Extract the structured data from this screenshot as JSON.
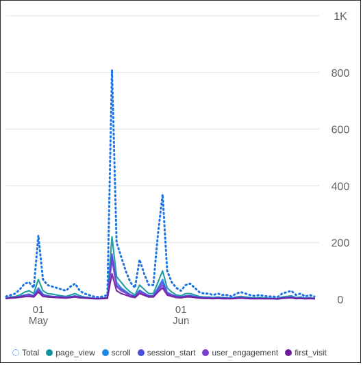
{
  "chart_data": {
    "type": "line",
    "x": [
      "2024-04-24",
      "2024-04-25",
      "2024-04-26",
      "2024-04-27",
      "2024-04-28",
      "2024-04-29",
      "2024-04-30",
      "2024-05-01",
      "2024-05-02",
      "2024-05-03",
      "2024-05-04",
      "2024-05-05",
      "2024-05-06",
      "2024-05-07",
      "2024-05-08",
      "2024-05-09",
      "2024-05-10",
      "2024-05-11",
      "2024-05-12",
      "2024-05-13",
      "2024-05-14",
      "2024-05-15",
      "2024-05-16",
      "2024-05-17",
      "2024-05-18",
      "2024-05-19",
      "2024-05-20",
      "2024-05-21",
      "2024-05-22",
      "2024-05-23",
      "2024-05-24",
      "2024-05-25",
      "2024-05-26",
      "2024-05-27",
      "2024-05-28",
      "2024-05-29",
      "2024-05-30",
      "2024-05-31",
      "2024-06-01",
      "2024-06-02",
      "2024-06-03",
      "2024-06-04",
      "2024-06-05",
      "2024-06-06",
      "2024-06-07",
      "2024-06-08",
      "2024-06-09",
      "2024-06-10",
      "2024-06-11",
      "2024-06-12",
      "2024-06-13",
      "2024-06-14",
      "2024-06-15",
      "2024-06-16",
      "2024-06-17",
      "2024-06-18",
      "2024-06-19",
      "2024-06-20",
      "2024-06-21",
      "2024-06-22",
      "2024-06-23",
      "2024-06-24",
      "2024-06-25",
      "2024-06-26",
      "2024-06-27",
      "2024-06-28",
      "2024-06-29",
      "2024-06-30"
    ],
    "x_ticks": [
      {
        "date": "2024-05-01",
        "label": "01",
        "sublabel": "May"
      },
      {
        "date": "2024-06-01",
        "label": "01",
        "sublabel": "Jun"
      }
    ],
    "y_ticks": [
      0,
      200,
      400,
      600,
      800,
      1000
    ],
    "y_tick_labels": [
      "0",
      "200",
      "400",
      "600",
      "800",
      "1K"
    ],
    "ylim": [
      0,
      1000
    ],
    "grid": true,
    "y_axis_side": "right",
    "legend_position": "bottom",
    "series": [
      {
        "name": "Total",
        "color": "#1a73e8",
        "style": "dotted",
        "marker": "hollow",
        "values": [
          10,
          15,
          20,
          35,
          55,
          60,
          40,
          225,
          70,
          50,
          45,
          40,
          35,
          30,
          45,
          55,
          30,
          20,
          15,
          10,
          8,
          10,
          15,
          810,
          200,
          150,
          100,
          60,
          40,
          140,
          90,
          50,
          50,
          230,
          370,
          100,
          60,
          40,
          30,
          50,
          55,
          40,
          25,
          20,
          20,
          15,
          20,
          15,
          15,
          10,
          20,
          25,
          20,
          15,
          12,
          15,
          12,
          10,
          10,
          8,
          20,
          25,
          30,
          15,
          20,
          10,
          15,
          10
        ]
      },
      {
        "name": "page_view",
        "color": "#12939a",
        "style": "solid",
        "marker": "filled",
        "values": [
          5,
          8,
          10,
          15,
          25,
          30,
          20,
          70,
          30,
          20,
          18,
          15,
          12,
          10,
          15,
          20,
          12,
          8,
          6,
          4,
          3,
          4,
          6,
          220,
          80,
          60,
          40,
          25,
          15,
          50,
          35,
          20,
          20,
          60,
          100,
          40,
          25,
          15,
          12,
          20,
          20,
          15,
          10,
          8,
          8,
          6,
          8,
          6,
          6,
          4,
          8,
          10,
          8,
          6,
          5,
          6,
          5,
          4,
          4,
          3,
          8,
          10,
          12,
          6,
          8,
          4,
          6,
          4
        ]
      },
      {
        "name": "scroll",
        "color": "#1e88e5",
        "style": "solid",
        "marker": "filled",
        "values": [
          3,
          5,
          6,
          10,
          15,
          18,
          12,
          40,
          18,
          12,
          10,
          9,
          8,
          6,
          9,
          12,
          7,
          5,
          4,
          3,
          2,
          3,
          4,
          150,
          60,
          40,
          28,
          16,
          10,
          32,
          22,
          12,
          12,
          40,
          70,
          25,
          16,
          10,
          8,
          12,
          13,
          10,
          6,
          5,
          5,
          4,
          5,
          4,
          4,
          3,
          5,
          6,
          5,
          4,
          3,
          4,
          3,
          3,
          3,
          2,
          5,
          6,
          7,
          4,
          5,
          3,
          4,
          3
        ]
      },
      {
        "name": "session_start",
        "color": "#4b4fde",
        "style": "solid",
        "marker": "filled",
        "values": [
          4,
          6,
          7,
          10,
          14,
          16,
          12,
          35,
          15,
          11,
          10,
          9,
          8,
          7,
          9,
          11,
          8,
          6,
          5,
          4,
          3,
          4,
          5,
          160,
          50,
          35,
          25,
          15,
          10,
          30,
          20,
          12,
          12,
          35,
          60,
          22,
          15,
          10,
          8,
          11,
          12,
          9,
          6,
          5,
          5,
          4,
          5,
          4,
          4,
          3,
          5,
          6,
          5,
          4,
          3,
          4,
          3,
          3,
          3,
          2,
          5,
          6,
          7,
          4,
          5,
          3,
          4,
          3
        ]
      },
      {
        "name": "user_engagement",
        "color": "#7b3fd0",
        "style": "solid",
        "marker": "filled",
        "values": [
          3,
          5,
          6,
          9,
          12,
          14,
          10,
          30,
          13,
          10,
          9,
          8,
          7,
          6,
          8,
          10,
          7,
          5,
          4,
          3,
          2,
          3,
          4,
          140,
          45,
          30,
          22,
          13,
          8,
          25,
          18,
          10,
          10,
          30,
          50,
          20,
          13,
          8,
          7,
          10,
          10,
          8,
          5,
          4,
          4,
          3,
          4,
          3,
          3,
          2,
          4,
          5,
          4,
          3,
          2,
          3,
          2,
          2,
          2,
          2,
          4,
          5,
          6,
          3,
          4,
          2,
          3,
          2
        ]
      },
      {
        "name": "first_visit",
        "color": "#6a1b9a",
        "style": "solid",
        "marker": "filled",
        "values": [
          3,
          4,
          5,
          7,
          9,
          10,
          8,
          25,
          10,
          8,
          7,
          6,
          5,
          4,
          6,
          8,
          5,
          4,
          3,
          2,
          2,
          2,
          3,
          90,
          30,
          20,
          15,
          9,
          6,
          20,
          14,
          8,
          8,
          25,
          40,
          15,
          10,
          6,
          5,
          8,
          8,
          6,
          4,
          3,
          3,
          2,
          3,
          2,
          2,
          2,
          3,
          4,
          3,
          2,
          2,
          2,
          2,
          2,
          2,
          1,
          3,
          4,
          5,
          2,
          3,
          2,
          2,
          2
        ]
      }
    ]
  }
}
